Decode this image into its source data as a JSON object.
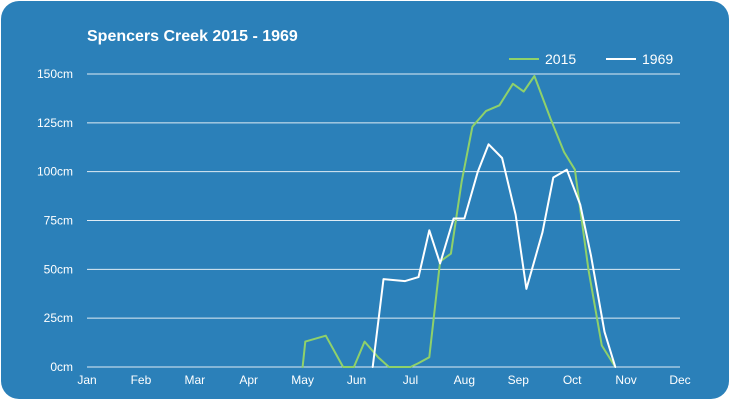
{
  "chart_data": {
    "type": "line",
    "title": "Spencers Creek 2015 - 1969",
    "xlabel": "",
    "ylabel": "",
    "x_ticks": [
      "Jan",
      "Feb",
      "Mar",
      "Apr",
      "May",
      "Jun",
      "Jul",
      "Aug",
      "Sep",
      "Oct",
      "Nov",
      "Dec"
    ],
    "y_ticks": [
      "0cm",
      "25cm",
      "50cm",
      "75cm",
      "100cm",
      "125cm",
      "150cm"
    ],
    "ylim": [
      0,
      150
    ],
    "xlim": [
      1,
      12
    ],
    "grid": true,
    "legend": "top-right",
    "series": [
      {
        "name": "2015",
        "color": "#8fd16a",
        "points": [
          [
            5.0,
            0
          ],
          [
            5.05,
            13
          ],
          [
            5.43,
            16
          ],
          [
            5.75,
            0
          ],
          [
            5.95,
            0
          ],
          [
            6.15,
            13
          ],
          [
            6.4,
            5
          ],
          [
            6.6,
            0
          ],
          [
            7.0,
            0
          ],
          [
            7.15,
            2
          ],
          [
            7.35,
            5
          ],
          [
            7.55,
            54
          ],
          [
            7.75,
            58
          ],
          [
            7.95,
            95
          ],
          [
            8.15,
            123
          ],
          [
            8.4,
            131
          ],
          [
            8.65,
            134
          ],
          [
            8.9,
            145
          ],
          [
            9.1,
            141
          ],
          [
            9.3,
            149
          ],
          [
            9.6,
            127
          ],
          [
            9.85,
            110
          ],
          [
            10.05,
            101
          ],
          [
            10.3,
            50
          ],
          [
            10.55,
            11
          ],
          [
            10.8,
            0
          ]
        ]
      },
      {
        "name": "1969",
        "color": "#ffffff",
        "points": [
          [
            6.3,
            0
          ],
          [
            6.5,
            45
          ],
          [
            6.9,
            44
          ],
          [
            7.15,
            46
          ],
          [
            7.35,
            70
          ],
          [
            7.55,
            53
          ],
          [
            7.8,
            76
          ],
          [
            8.0,
            76
          ],
          [
            8.25,
            100
          ],
          [
            8.45,
            114
          ],
          [
            8.7,
            107
          ],
          [
            8.95,
            78
          ],
          [
            9.15,
            40
          ],
          [
            9.45,
            69
          ],
          [
            9.65,
            97
          ],
          [
            9.9,
            101
          ],
          [
            10.15,
            83
          ],
          [
            10.35,
            57
          ],
          [
            10.6,
            18
          ],
          [
            10.8,
            0
          ]
        ]
      }
    ]
  }
}
